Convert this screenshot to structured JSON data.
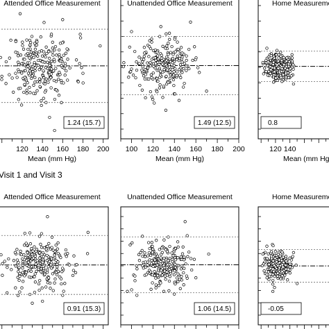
{
  "section_label": "Visit 1 and Visit 3",
  "chart_data": [
    {
      "type": "scatter",
      "row": 0,
      "col": 0,
      "title": "Attended Office Measurement",
      "stat": "1.24 (15.7)",
      "xlabel": "Mean (mm Hg)",
      "xticks": [
        120,
        140,
        160,
        180,
        200
      ],
      "xlim": [
        94,
        205
      ],
      "mean_diff": 1.24,
      "sd": 15.7,
      "cloud": {
        "cx": 138,
        "sx": 17,
        "n": 260,
        "seed": 11
      },
      "points": [
        {
          "x": 147,
          "y": -42
        },
        {
          "x": 152,
          "y": -53
        },
        {
          "x": 139,
          "y": -32
        },
        {
          "x": 197,
          "y": 18
        },
        {
          "x": 180,
          "y": -5
        },
        {
          "x": 118,
          "y": 45
        },
        {
          "x": 160,
          "y": 40
        }
      ]
    },
    {
      "type": "scatter",
      "row": 0,
      "col": 1,
      "title": "Unattended Office Measurement",
      "stat": "1.49 (12.5)",
      "xlabel": "Mean (mm Hg)",
      "xticks": [
        100,
        120,
        140,
        160,
        180,
        200
      ],
      "xlim": [
        90,
        200
      ],
      "mean_diff": 1.49,
      "sd": 12.5,
      "cloud": {
        "cx": 128,
        "sx": 14,
        "n": 250,
        "seed": 23
      },
      "points": [
        {
          "x": 155,
          "y": 38
        },
        {
          "x": 100,
          "y": 30
        },
        {
          "x": 170,
          "y": -20
        },
        {
          "x": 132,
          "y": -36
        }
      ]
    },
    {
      "type": "scatter",
      "row": 0,
      "col": 2,
      "title": "Home Measurement",
      "stat": "0.8",
      "xlabel": "Mean (mm Hg)",
      "xticks": [
        120,
        140
      ],
      "xlim": [
        96,
        200
      ],
      "mean_diff": 0.8,
      "sd": 6.5,
      "cloud": {
        "cx": 124,
        "sx": 9,
        "n": 280,
        "seed": 37
      },
      "points": [
        {
          "x": 108,
          "y": 16
        },
        {
          "x": 145,
          "y": -14
        }
      ]
    },
    {
      "type": "scatter",
      "row": 1,
      "col": 0,
      "title": "Attended Office Measurement",
      "stat": "0.91 (15.3)",
      "xlabel": "",
      "xticks": [],
      "xlim": [
        94,
        205
      ],
      "mean_diff": 0.91,
      "sd": 15.3,
      "cloud": {
        "cx": 138,
        "sx": 17,
        "n": 260,
        "seed": 53
      },
      "points": [
        {
          "x": 185,
          "y": 34
        },
        {
          "x": 145,
          "y": 50
        },
        {
          "x": 130,
          "y": -38
        },
        {
          "x": 160,
          "y": -30
        }
      ]
    },
    {
      "type": "scatter",
      "row": 1,
      "col": 1,
      "title": "Unattended Office Measurement",
      "stat": "1.06 (14.5)",
      "xlabel": "",
      "xticks": [],
      "xlim": [
        90,
        200
      ],
      "mean_diff": 1.06,
      "sd": 14.5,
      "cloud": {
        "cx": 130,
        "sx": 14,
        "n": 250,
        "seed": 71
      },
      "points": [
        {
          "x": 150,
          "y": 45
        },
        {
          "x": 172,
          "y": 12
        },
        {
          "x": 105,
          "y": -30
        }
      ]
    },
    {
      "type": "scatter",
      "row": 1,
      "col": 2,
      "title": "Home Measurement",
      "stat": "-0.05",
      "xlabel": "",
      "xticks": [],
      "xlim": [
        96,
        200
      ],
      "mean_diff": -0.05,
      "sd": 8.5,
      "cloud": {
        "cx": 124,
        "sx": 9,
        "n": 280,
        "seed": 89
      },
      "points": [
        {
          "x": 108,
          "y": 20
        },
        {
          "x": 150,
          "y": -18
        }
      ]
    }
  ]
}
